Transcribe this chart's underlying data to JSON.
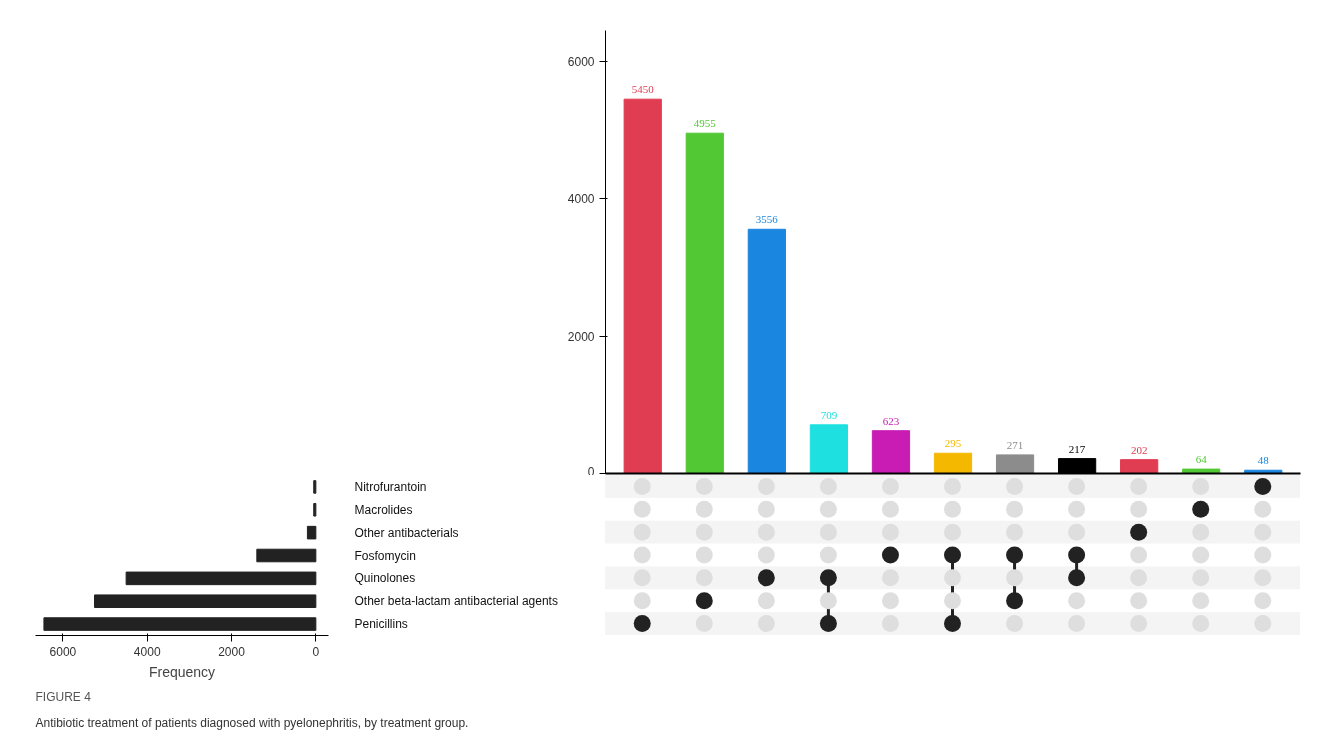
{
  "chart_data": [
    {
      "type": "bar",
      "categories": [
        null,
        null,
        null,
        null,
        null,
        null,
        null,
        null,
        null,
        null,
        null
      ],
      "values": [
        5450,
        4955,
        3556,
        709,
        623,
        295,
        271,
        217,
        202,
        64,
        48
      ],
      "colors": [
        "#e03c52",
        "#52c934",
        "#1a86e0",
        "#1ee0e0",
        "#c81cb4",
        "#f5b800",
        "#8c8c8c",
        "#000000",
        "#e03c52",
        "#52c934",
        "#1a86e0"
      ],
      "data_labels": true,
      "ylim": [
        0,
        6450
      ],
      "yticks": [
        0,
        2000,
        4000,
        6000
      ],
      "tick_labels": "y",
      "grid": false
    },
    {
      "type": "bar",
      "orientation": "horizontal",
      "xlabel": "Frequency",
      "categories": [
        "Nitrofurantoin",
        "Macrolides",
        "Other antibacterials",
        "Fosfomycin",
        "Quinolones",
        "Other beta-lactam antibacterial agents",
        "Penicillins"
      ],
      "values": [
        50,
        50,
        200,
        1400,
        4500,
        5250,
        6450
      ],
      "color": "#222222",
      "xlim": [
        6650,
        -300
      ],
      "xticks": [
        6000,
        4000,
        2000,
        0
      ],
      "grid": false,
      "annotations": [
        "FIGURE 4",
        "Antibiotic treatment of patients diagnosed with pyelonephritis, by treatment group."
      ]
    }
  ]
}
